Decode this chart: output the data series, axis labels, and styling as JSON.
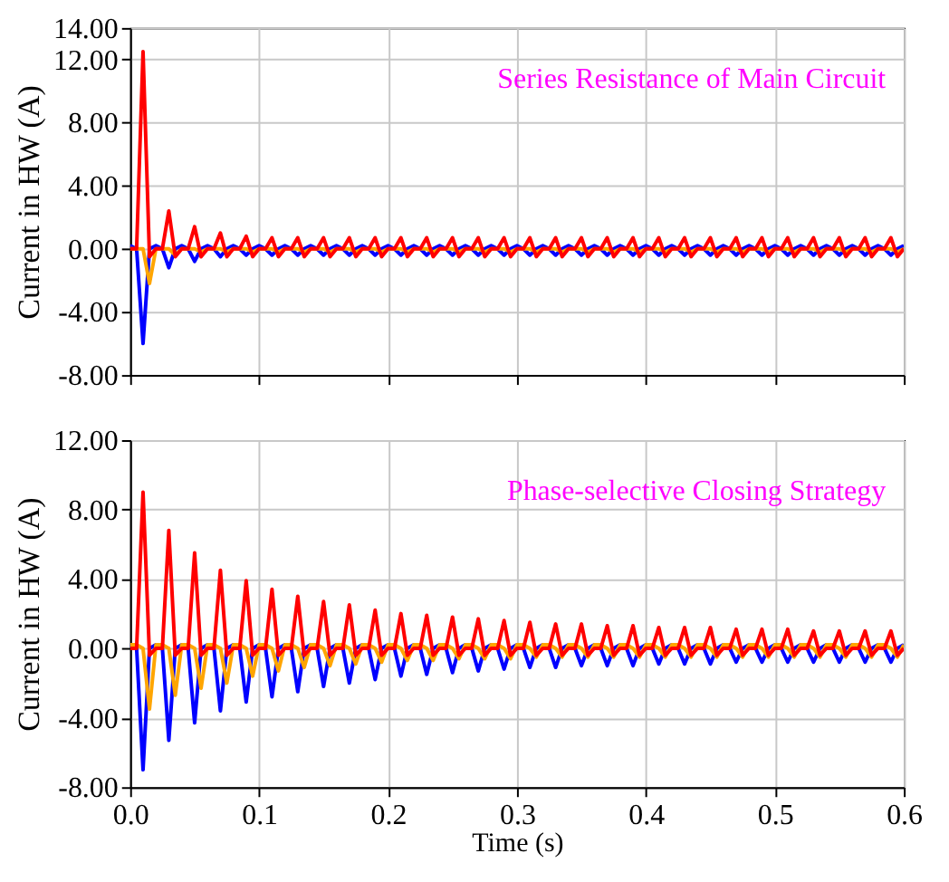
{
  "chart_data": [
    {
      "type": "line",
      "ylabel": "Current in HW (A)",
      "annotations": [
        "Series Resistance of Main Circuit"
      ],
      "grid": true,
      "tick_labels": "y",
      "xlim": [
        0,
        0.6
      ],
      "xticks": [
        0,
        0.1,
        0.2,
        0.3,
        0.4,
        0.5,
        0.6
      ],
      "ylim": [
        -8,
        14
      ],
      "yticks": [
        {
          "value": -8,
          "label": "-8.00"
        },
        {
          "value": -4,
          "label": "-4.00"
        },
        {
          "value": 0,
          "label": "0.00"
        },
        {
          "value": 4,
          "label": "4.00"
        },
        {
          "value": 8,
          "label": "8.00"
        },
        {
          "value": 12,
          "label": "12.00"
        },
        {
          "value": 14,
          "label": "14.00"
        }
      ],
      "x": [
        0,
        0.005,
        0.01,
        0.015,
        0.02,
        0.025,
        0.03,
        0.035,
        0.04,
        0.045,
        0.05,
        0.055,
        0.06,
        0.065,
        0.07,
        0.075,
        0.08,
        0.085,
        0.09,
        0.095,
        0.1,
        0.105,
        0.11,
        0.115,
        0.12,
        0.125,
        0.13,
        0.135,
        0.14,
        0.145,
        0.15,
        0.155,
        0.16,
        0.165,
        0.17,
        0.175,
        0.18,
        0.185,
        0.19,
        0.195,
        0.2,
        0.205,
        0.21,
        0.215,
        0.22,
        0.225,
        0.23,
        0.235,
        0.24,
        0.245,
        0.25,
        0.255,
        0.26,
        0.265,
        0.27,
        0.275,
        0.28,
        0.285,
        0.29,
        0.295,
        0.3,
        0.305,
        0.31,
        0.315,
        0.32,
        0.325,
        0.33,
        0.335,
        0.34,
        0.345,
        0.35,
        0.355,
        0.36,
        0.365,
        0.37,
        0.375,
        0.38,
        0.385,
        0.39,
        0.395,
        0.4,
        0.405,
        0.41,
        0.415,
        0.42,
        0.425,
        0.43,
        0.435,
        0.44,
        0.445,
        0.45,
        0.455,
        0.46,
        0.465,
        0.47,
        0.475,
        0.48,
        0.485,
        0.49,
        0.495,
        0.5,
        0.505,
        0.51,
        0.515,
        0.52,
        0.525,
        0.53,
        0.535,
        0.54,
        0.545,
        0.55,
        0.555,
        0.56,
        0.565,
        0.57,
        0.575,
        0.58,
        0.585,
        0.59,
        0.595,
        0.6
      ],
      "series": [
        {
          "color": "#0000ff",
          "values": [
            0.2,
            0,
            -6.0,
            0,
            0.2,
            0,
            -1.2,
            0,
            0.2,
            0,
            -0.8,
            0,
            0.2,
            0,
            -0.5,
            0,
            0.2,
            0,
            -0.4,
            0,
            0.2,
            0,
            -0.4,
            0,
            0.2,
            0,
            -0.4,
            0,
            0.2,
            0,
            -0.4,
            0,
            0.2,
            0,
            -0.4,
            0,
            0.2,
            0,
            -0.4,
            0,
            0.2,
            0,
            -0.4,
            0,
            0.2,
            0,
            -0.4,
            0,
            0.2,
            0,
            -0.4,
            0,
            0.2,
            0,
            -0.4,
            0,
            0.2,
            0,
            -0.4,
            0,
            0.2,
            0,
            -0.4,
            0,
            0.2,
            0,
            -0.4,
            0,
            0.2,
            0,
            -0.4,
            0,
            0.2,
            0,
            -0.4,
            0,
            0.2,
            0,
            -0.4,
            0,
            0.2,
            0,
            -0.4,
            0,
            0.2,
            0,
            -0.4,
            0,
            0.2,
            0,
            -0.4,
            0,
            0.2,
            0,
            -0.4,
            0,
            0.2,
            0,
            -0.4,
            0,
            0.2,
            0,
            -0.4,
            0,
            0.2,
            0,
            -0.4,
            0,
            0.2,
            0,
            -0.4,
            0,
            0.2,
            0,
            -0.4,
            0,
            0.2,
            0,
            -0.4,
            0,
            0.2
          ]
        },
        {
          "color": "#ffa500",
          "values": [
            0,
            0,
            0,
            -2.2,
            0,
            0,
            0,
            -0.4,
            0,
            0,
            0,
            -0.2,
            0,
            0,
            0,
            -0.2,
            0,
            0,
            0,
            -0.2,
            0,
            0,
            0,
            -0.2,
            0,
            0,
            0,
            -0.2,
            0,
            0,
            0,
            -0.2,
            0,
            0,
            0,
            -0.2,
            0,
            0,
            0,
            -0.2,
            0,
            0,
            0,
            -0.2,
            0,
            0,
            0,
            -0.2,
            0,
            0,
            0,
            -0.2,
            0,
            0,
            0,
            -0.2,
            0,
            0,
            0,
            -0.2,
            0,
            0,
            0,
            -0.2,
            0,
            0,
            0,
            -0.2,
            0,
            0,
            0,
            -0.2,
            0,
            0,
            0,
            -0.2,
            0,
            0,
            0,
            -0.2,
            0,
            0,
            0,
            -0.2,
            0,
            0,
            0,
            -0.2,
            0,
            0,
            0,
            -0.2,
            0,
            0,
            0,
            -0.2,
            0,
            0,
            0,
            -0.2,
            0,
            0,
            0,
            -0.2,
            0,
            0,
            0,
            -0.2,
            0,
            0,
            0,
            -0.2,
            0,
            0,
            0,
            -0.2,
            0,
            0,
            0,
            -0.2,
            0
          ]
        },
        {
          "color": "#ff0000",
          "values": [
            0,
            0,
            12.5,
            -0.5,
            0,
            0,
            2.4,
            -0.5,
            0,
            0,
            1.4,
            -0.5,
            0,
            0,
            1.0,
            -0.5,
            0,
            0,
            0.8,
            -0.5,
            0,
            0,
            0.7,
            -0.5,
            0,
            0,
            0.7,
            -0.5,
            0,
            0,
            0.7,
            -0.5,
            0,
            0,
            0.7,
            -0.5,
            0,
            0,
            0.7,
            -0.5,
            0,
            0,
            0.7,
            -0.5,
            0,
            0,
            0.7,
            -0.5,
            0,
            0,
            0.7,
            -0.5,
            0,
            0,
            0.7,
            -0.5,
            0,
            0,
            0.7,
            -0.5,
            0,
            0,
            0.7,
            -0.5,
            0,
            0,
            0.7,
            -0.5,
            0,
            0,
            0.7,
            -0.5,
            0,
            0,
            0.7,
            -0.5,
            0,
            0,
            0.7,
            -0.5,
            0,
            0,
            0.7,
            -0.5,
            0,
            0,
            0.7,
            -0.5,
            0,
            0,
            0.7,
            -0.5,
            0,
            0,
            0.7,
            -0.5,
            0,
            0,
            0.7,
            -0.5,
            0,
            0,
            0.7,
            -0.5,
            0,
            0,
            0.7,
            -0.5,
            0,
            0,
            0.7,
            -0.5,
            0,
            0,
            0.7,
            -0.5,
            0,
            0,
            0.7,
            -0.5,
            0
          ]
        }
      ]
    },
    {
      "type": "line",
      "ylabel": "Current in HW (A)",
      "xlabel": "Time (s)",
      "annotations": [
        "Phase-selective Closing Strategy"
      ],
      "grid": true,
      "xlim": [
        0,
        0.6
      ],
      "xticks": [
        {
          "value": 0,
          "label": "0.0"
        },
        0.1,
        0.2,
        0.3,
        0.4,
        0.5,
        0.6
      ],
      "ylim": [
        -8,
        12
      ],
      "yticks": [
        {
          "value": -8,
          "label": "-8.00"
        },
        {
          "value": -4,
          "label": "-4.00"
        },
        {
          "value": 0,
          "label": "0.00"
        },
        {
          "value": 4,
          "label": "4.00"
        },
        {
          "value": 8,
          "label": "8.00"
        },
        {
          "value": 12,
          "label": "12.00"
        }
      ],
      "x": [
        0,
        0.005,
        0.01,
        0.015,
        0.02,
        0.025,
        0.03,
        0.035,
        0.04,
        0.045,
        0.05,
        0.055,
        0.06,
        0.065,
        0.07,
        0.075,
        0.08,
        0.085,
        0.09,
        0.095,
        0.1,
        0.105,
        0.11,
        0.115,
        0.12,
        0.125,
        0.13,
        0.135,
        0.14,
        0.145,
        0.15,
        0.155,
        0.16,
        0.165,
        0.17,
        0.175,
        0.18,
        0.185,
        0.19,
        0.195,
        0.2,
        0.205,
        0.21,
        0.215,
        0.22,
        0.225,
        0.23,
        0.235,
        0.24,
        0.245,
        0.25,
        0.255,
        0.26,
        0.265,
        0.27,
        0.275,
        0.28,
        0.285,
        0.29,
        0.295,
        0.3,
        0.305,
        0.31,
        0.315,
        0.32,
        0.325,
        0.33,
        0.335,
        0.34,
        0.345,
        0.35,
        0.355,
        0.36,
        0.365,
        0.37,
        0.375,
        0.38,
        0.385,
        0.39,
        0.395,
        0.4,
        0.405,
        0.41,
        0.415,
        0.42,
        0.425,
        0.43,
        0.435,
        0.44,
        0.445,
        0.45,
        0.455,
        0.46,
        0.465,
        0.47,
        0.475,
        0.48,
        0.485,
        0.49,
        0.495,
        0.5,
        0.505,
        0.51,
        0.515,
        0.52,
        0.525,
        0.53,
        0.535,
        0.54,
        0.545,
        0.55,
        0.555,
        0.56,
        0.565,
        0.57,
        0.575,
        0.58,
        0.585,
        0.59,
        0.595,
        0.6
      ],
      "series": [
        {
          "color": "#0000ff",
          "values": [
            0.2,
            0,
            -7.0,
            0,
            0.2,
            0,
            -5.3,
            0,
            0.2,
            0,
            -4.3,
            0,
            0.2,
            0,
            -3.6,
            0,
            0.2,
            0,
            -3.1,
            0,
            0.2,
            0,
            -2.8,
            0,
            0.2,
            0,
            -2.5,
            0,
            0.2,
            0,
            -2.2,
            0,
            0.2,
            0,
            -2.0,
            0,
            0.2,
            0,
            -1.8,
            0,
            0.2,
            0,
            -1.6,
            0,
            0.2,
            0,
            -1.5,
            0,
            0.2,
            0,
            -1.4,
            0,
            0.2,
            0,
            -1.3,
            0,
            0.2,
            0,
            -1.2,
            0,
            0.2,
            0,
            -1.1,
            0,
            0.2,
            0,
            -1.1,
            0,
            0.2,
            0,
            -1.0,
            0,
            0.2,
            0,
            -1.0,
            0,
            0.2,
            0,
            -1.0,
            0,
            0.2,
            0,
            -0.9,
            0,
            0.2,
            0,
            -0.9,
            0,
            0.2,
            0,
            -0.9,
            0,
            0.2,
            0,
            -0.8,
            0,
            0.2,
            0,
            -0.8,
            0,
            0.2,
            0,
            -0.8,
            0,
            0.2,
            0,
            -0.8,
            0,
            0.2,
            0,
            -0.8,
            0,
            0.2,
            0,
            -0.8,
            0,
            0.2,
            0,
            -0.8,
            0,
            0.2
          ]
        },
        {
          "color": "#ffa500",
          "values": [
            0.2,
            0.2,
            0,
            -3.5,
            0.2,
            0.2,
            0,
            -2.7,
            0.2,
            0.2,
            0,
            -2.3,
            0.2,
            0.2,
            0,
            -2.0,
            0.2,
            0.2,
            0,
            -1.6,
            0.2,
            0.2,
            0,
            -1.3,
            0.2,
            0.2,
            0,
            -1.1,
            0.2,
            0.2,
            0,
            -1.0,
            0.2,
            0.2,
            0,
            -0.9,
            0.2,
            0.2,
            0,
            -0.8,
            0.2,
            0.2,
            0,
            -0.7,
            0.2,
            0.2,
            0,
            -0.7,
            0.2,
            0.2,
            0,
            -0.6,
            0.2,
            0.2,
            0,
            -0.6,
            0.2,
            0.2,
            0,
            -0.6,
            0.2,
            0.2,
            0,
            -0.5,
            0.2,
            0.2,
            0,
            -0.5,
            0.2,
            0.2,
            0,
            -0.5,
            0.2,
            0.2,
            0,
            -0.5,
            0.2,
            0.2,
            0,
            -0.5,
            0.2,
            0.2,
            0,
            -0.5,
            0.2,
            0.2,
            0,
            -0.5,
            0.2,
            0.2,
            0,
            -0.5,
            0.2,
            0.2,
            0,
            -0.5,
            0.2,
            0.2,
            0,
            -0.5,
            0.2,
            0.2,
            0,
            -0.5,
            0.2,
            0.2,
            0,
            -0.5,
            0.2,
            0.2,
            0,
            -0.5,
            0.2,
            0.2,
            0,
            -0.5,
            0.2,
            0.2,
            0,
            -0.5,
            0.2
          ]
        },
        {
          "color": "#ff0000",
          "values": [
            0,
            0,
            9.0,
            -0.4,
            0,
            0,
            6.8,
            -0.4,
            0,
            0,
            5.5,
            -0.4,
            0,
            0,
            4.5,
            -0.4,
            0,
            0,
            3.9,
            -0.4,
            0,
            0,
            3.4,
            -0.4,
            0,
            0,
            3.0,
            -0.4,
            0,
            0,
            2.7,
            -0.4,
            0,
            0,
            2.5,
            -0.4,
            0,
            0,
            2.2,
            -0.4,
            0,
            0,
            2.0,
            -0.4,
            0,
            0,
            1.9,
            -0.4,
            0,
            0,
            1.8,
            -0.4,
            0,
            0,
            1.7,
            -0.4,
            0,
            0,
            1.6,
            -0.4,
            0,
            0,
            1.5,
            -0.4,
            0,
            0,
            1.4,
            -0.4,
            0,
            0,
            1.4,
            -0.4,
            0,
            0,
            1.3,
            -0.4,
            0,
            0,
            1.3,
            -0.4,
            0,
            0,
            1.2,
            -0.4,
            0,
            0,
            1.2,
            -0.4,
            0,
            0,
            1.2,
            -0.4,
            0,
            0,
            1.1,
            -0.4,
            0,
            0,
            1.1,
            -0.4,
            0,
            0,
            1.1,
            -0.4,
            0,
            0,
            1.0,
            -0.4,
            0,
            0,
            1.0,
            -0.4,
            0,
            0,
            1.0,
            -0.4,
            0,
            0,
            1.0,
            -0.4,
            0
          ]
        }
      ]
    }
  ]
}
